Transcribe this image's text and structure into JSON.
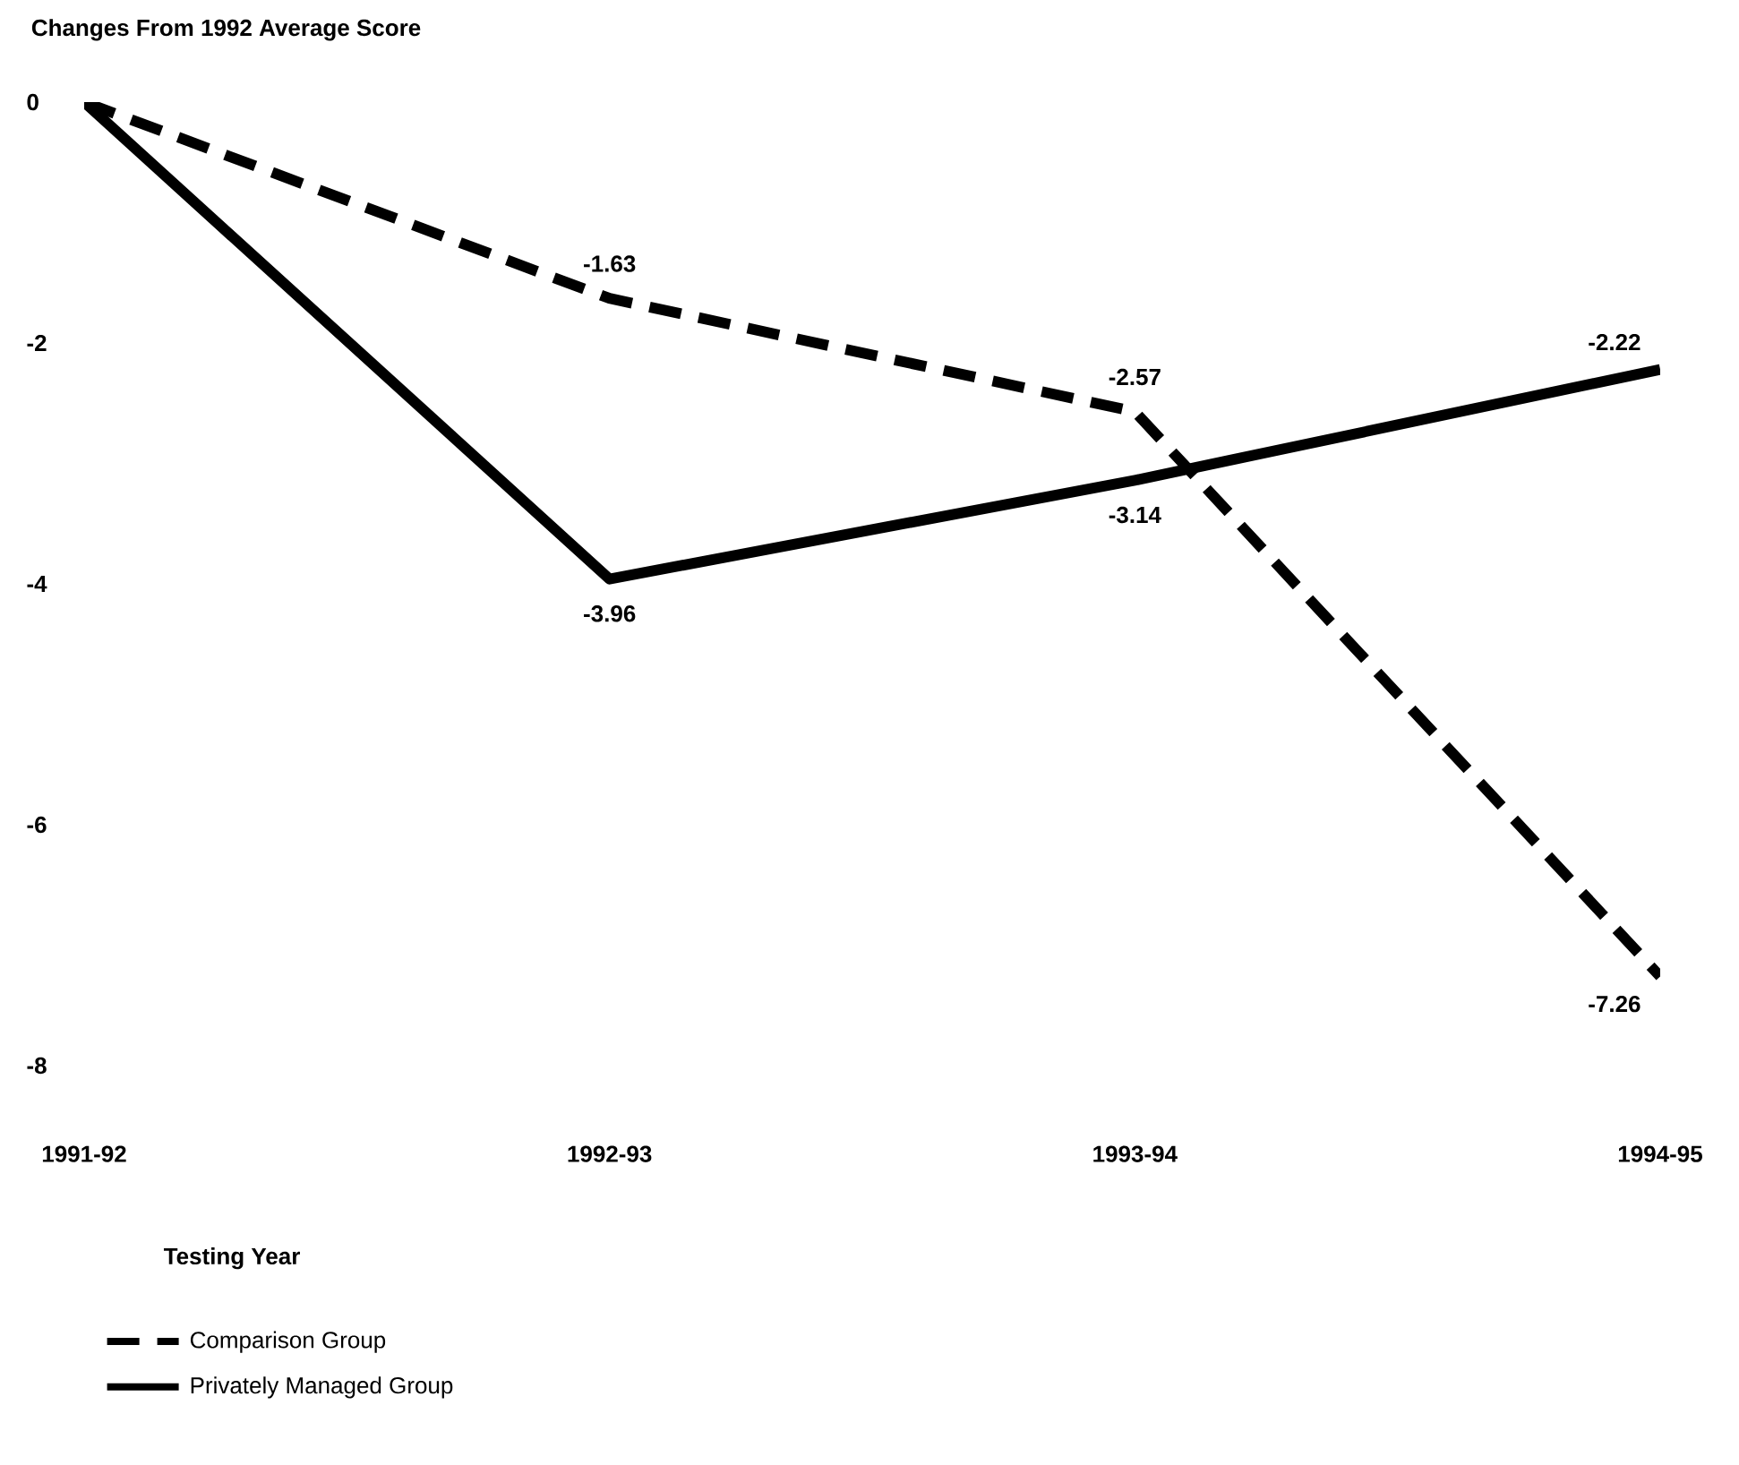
{
  "chart_data": {
    "type": "line",
    "ylabel": "Changes From 1992 Average Score",
    "xlabel": "Testing Year",
    "categories": [
      "1991-92",
      "1992-93",
      "1993-94",
      "1994-95"
    ],
    "ylim": [
      -8,
      0
    ],
    "yticks": [
      0,
      -2,
      -4,
      -6,
      -8
    ],
    "legend": "bottom",
    "marker": "none",
    "grid": false,
    "series": [
      {
        "name": "Comparison Group",
        "color": "#000000",
        "line_style": "dashed",
        "values": [
          0,
          -1.63,
          -2.57,
          -7.26
        ],
        "value_labels": [
          null,
          "-1.63",
          "-2.57",
          "-7.26"
        ]
      },
      {
        "name": "Privately Managed Group",
        "color": "#000000",
        "line_style": "solid",
        "values": [
          0,
          -3.96,
          -3.14,
          -2.22
        ],
        "value_labels": [
          null,
          "-3.96",
          "-3.14",
          "-2.22"
        ]
      }
    ]
  }
}
